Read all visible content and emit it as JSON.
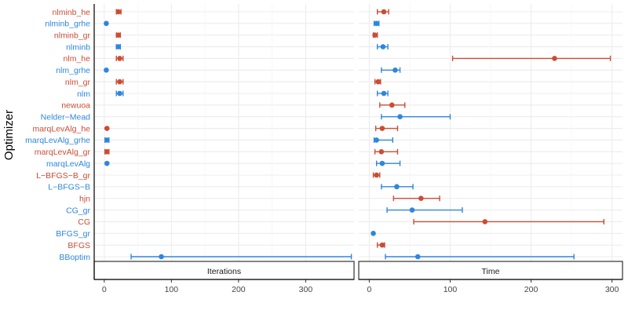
{
  "chart_data": {
    "type": "dot-errorbar",
    "ylabel": "Optimizer",
    "colors": {
      "gr_he": "#cc4c34",
      "plain": "#2e86de"
    },
    "categories": [
      "BBoptim",
      "BFGS",
      "BFGS_gr",
      "CG",
      "CG_gr",
      "hjn",
      "L−BFGS−B",
      "L−BFGS−B_gr",
      "marqLevAlg",
      "marqLevAlg_gr",
      "marqLevAlg_grhe",
      "marqLevAlg_he",
      "Nelder−Mead",
      "newuoa",
      "nlm",
      "nlm_gr",
      "nlm_grhe",
      "nlm_he",
      "nlminb",
      "nlminb_gr",
      "nlminb_grhe",
      "nlminb_he"
    ],
    "category_group": [
      "plain",
      "gr_he",
      "plain",
      "gr_he",
      "plain",
      "gr_he",
      "plain",
      "gr_he",
      "plain",
      "gr_he",
      "plain",
      "gr_he",
      "plain",
      "gr_he",
      "plain",
      "gr_he",
      "plain",
      "gr_he",
      "plain",
      "gr_he",
      "plain",
      "gr_he"
    ],
    "facets": [
      {
        "name": "Iterations",
        "xlim": [
          -15,
          372
        ],
        "xticks": [
          0,
          100,
          200,
          300
        ],
        "points": [
          {
            "cat": "BBoptim",
            "x": 85,
            "lo": 40,
            "hi": 368
          },
          {
            "cat": "marqLevAlg",
            "x": 4
          },
          {
            "cat": "marqLevAlg_gr",
            "x": 4,
            "lo": 1,
            "hi": 7
          },
          {
            "cat": "marqLevAlg_grhe",
            "x": 4,
            "lo": 1,
            "hi": 7
          },
          {
            "cat": "marqLevAlg_he",
            "x": 4
          },
          {
            "cat": "nlm",
            "x": 23,
            "lo": 18,
            "hi": 28
          },
          {
            "cat": "nlm_gr",
            "x": 23,
            "lo": 18,
            "hi": 28
          },
          {
            "cat": "nlm_grhe",
            "x": 3
          },
          {
            "cat": "nlm_he",
            "x": 23,
            "lo": 18,
            "hi": 28
          },
          {
            "cat": "nlminb",
            "x": 21,
            "lo": 18,
            "hi": 24
          },
          {
            "cat": "nlminb_gr",
            "x": 21,
            "lo": 18,
            "hi": 24
          },
          {
            "cat": "nlminb_grhe",
            "x": 3
          },
          {
            "cat": "nlminb_he",
            "x": 21,
            "lo": 18,
            "hi": 25
          }
        ]
      },
      {
        "name": "Time",
        "xlim": [
          -13,
          313
        ],
        "xticks": [
          0,
          100,
          200,
          300
        ],
        "points": [
          {
            "cat": "BBoptim",
            "x": 60,
            "lo": 20,
            "hi": 253
          },
          {
            "cat": "BFGS",
            "x": 16,
            "lo": 10,
            "hi": 19
          },
          {
            "cat": "BFGS_gr",
            "x": 5
          },
          {
            "cat": "CG",
            "x": 143,
            "lo": 55,
            "hi": 290
          },
          {
            "cat": "CG_gr",
            "x": 53,
            "lo": 22,
            "hi": 115
          },
          {
            "cat": "hjn",
            "x": 64,
            "lo": 30,
            "hi": 87
          },
          {
            "cat": "L−BFGS−B",
            "x": 34,
            "lo": 15,
            "hi": 54
          },
          {
            "cat": "L−BFGS−B_gr",
            "x": 9,
            "lo": 5,
            "hi": 13
          },
          {
            "cat": "marqLevAlg",
            "x": 16,
            "lo": 9,
            "hi": 38
          },
          {
            "cat": "marqLevAlg_gr",
            "x": 15,
            "lo": 7,
            "hi": 35
          },
          {
            "cat": "marqLevAlg_grhe",
            "x": 9,
            "lo": 6,
            "hi": 29
          },
          {
            "cat": "marqLevAlg_he",
            "x": 16,
            "lo": 8,
            "hi": 35
          },
          {
            "cat": "Nelder−Mead",
            "x": 38,
            "lo": 15,
            "hi": 100
          },
          {
            "cat": "newuoa",
            "x": 28,
            "lo": 13,
            "hi": 44
          },
          {
            "cat": "nlm",
            "x": 18,
            "lo": 10,
            "hi": 23
          },
          {
            "cat": "nlm_gr",
            "x": 11,
            "lo": 7,
            "hi": 14
          },
          {
            "cat": "nlm_grhe",
            "x": 32,
            "lo": 15,
            "hi": 38
          },
          {
            "cat": "nlm_he",
            "x": 229,
            "lo": 103,
            "hi": 298
          },
          {
            "cat": "nlminb",
            "x": 17,
            "lo": 10,
            "hi": 23
          },
          {
            "cat": "nlminb_gr",
            "x": 7,
            "lo": 5,
            "hi": 10
          },
          {
            "cat": "nlminb_grhe",
            "x": 9,
            "lo": 6,
            "hi": 12
          },
          {
            "cat": "nlminb_he",
            "x": 18,
            "lo": 10,
            "hi": 24
          }
        ]
      }
    ]
  }
}
